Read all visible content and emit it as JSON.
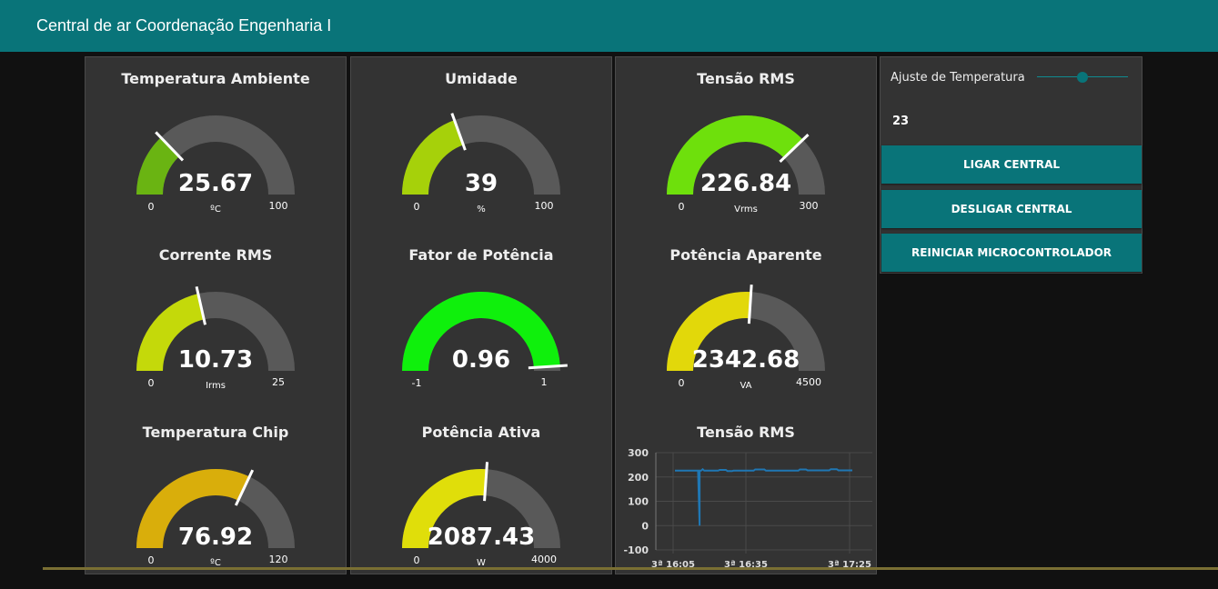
{
  "header": {
    "title": "Central de ar Coordenação Engenharia I"
  },
  "gauges": [
    {
      "title": "Temperatura Ambiente",
      "value_text": "25.67",
      "value": 25.67,
      "min": 0,
      "max": 100,
      "min_text": "0",
      "max_text": "100",
      "unit": "ºC",
      "color": "#6ab412"
    },
    {
      "title": "Umidade",
      "value_text": "39",
      "value": 39,
      "min": 0,
      "max": 100,
      "min_text": "0",
      "max_text": "100",
      "unit": "%",
      "color": "#a6d10a"
    },
    {
      "title": "Tensão RMS",
      "value_text": "226.84",
      "value": 226.84,
      "min": 0,
      "max": 300,
      "min_text": "0",
      "max_text": "300",
      "unit": "Vrms",
      "color": "#6ee00c"
    },
    {
      "title": "Corrente RMS",
      "value_text": "10.73",
      "value": 10.73,
      "min": 0,
      "max": 25,
      "min_text": "0",
      "max_text": "25",
      "unit": "Irms",
      "color": "#c4d90a"
    },
    {
      "title": "Fator de Potência",
      "value_text": "0.96",
      "value": 0.96,
      "min": -1,
      "max": 1,
      "min_text": "-1",
      "max_text": "1",
      "unit": "",
      "color": "#0ff00c"
    },
    {
      "title": "Potência Aparente",
      "value_text": "2342.68",
      "value": 2342.68,
      "min": 0,
      "max": 4500,
      "min_text": "0",
      "max_text": "4500",
      "unit": "VA",
      "color": "#e2d80a"
    },
    {
      "title": "Temperatura Chip",
      "value_text": "76.92",
      "value": 76.92,
      "min": 0,
      "max": 120,
      "min_text": "0",
      "max_text": "120",
      "unit": "ºC",
      "color": "#d9ae0b"
    },
    {
      "title": "Potência Ativa",
      "value_text": "2087.43",
      "value": 2087.43,
      "min": 0,
      "max": 4000,
      "min_text": "0",
      "max_text": "4000",
      "unit": "W",
      "color": "#e0de0a"
    }
  ],
  "chart_data": {
    "type": "line",
    "title": "Tensão RMS",
    "y_ticks": [
      "300",
      "200",
      "100",
      "0",
      "-100"
    ],
    "x_ticks": [
      "3ª 16:05",
      "3ª 16:35",
      "3ª 17:25"
    ],
    "ylim": [
      -100,
      300
    ],
    "x_unit": "minutes",
    "x": [
      0,
      15,
      16,
      16,
      17,
      18,
      18,
      19,
      28,
      29,
      33,
      34,
      37,
      38,
      51,
      52,
      58,
      59,
      80,
      81,
      85,
      86,
      100,
      101,
      105,
      106,
      115
    ],
    "y": [
      226,
      226,
      0,
      226,
      226,
      232,
      232,
      226,
      226,
      229,
      229,
      224,
      224,
      226,
      226,
      231,
      231,
      226,
      226,
      231,
      231,
      227,
      227,
      232,
      232,
      227,
      227
    ],
    "series_color": "#1f77b4",
    "grid": true
  },
  "controls": {
    "slider_label": "Ajuste de Temperatura",
    "slider_value": "23",
    "slider_fraction": 0.5,
    "buttons": [
      "LIGAR CENTRAL",
      "DESLIGAR CENTRAL",
      "REINICIAR MICROCONTROLADOR"
    ]
  },
  "colors": {
    "accent": "#097479",
    "background": "#111111",
    "card": "#333333",
    "gauge_track": "#595959"
  }
}
